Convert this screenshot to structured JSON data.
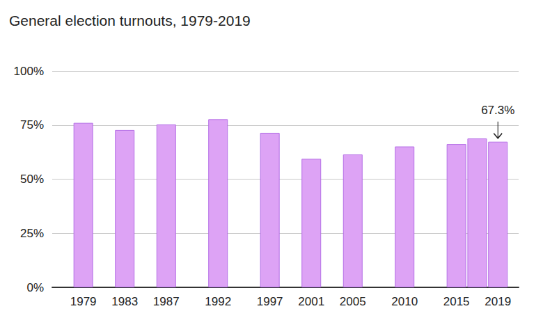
{
  "chart_data": {
    "type": "bar",
    "title": "General election turnouts, 1979-2019",
    "x": [
      1979,
      1983,
      1987,
      1992,
      1997,
      2001,
      2005,
      2010,
      2015,
      2017,
      2019
    ],
    "values": [
      76.0,
      72.7,
      75.3,
      77.7,
      71.4,
      59.4,
      61.4,
      65.1,
      66.2,
      68.8,
      67.3
    ],
    "color": "#dda3f5",
    "xlim": [
      1976,
      2021
    ],
    "xticks": [
      1979,
      1983,
      1987,
      1992,
      1997,
      2001,
      2005,
      2010,
      2015,
      2019
    ],
    "ylim": [
      0,
      100
    ],
    "yticks": [
      {
        "value": 0,
        "label": "0%"
      },
      {
        "value": 25,
        "label": "25%"
      },
      {
        "value": 50,
        "label": "50%"
      },
      {
        "value": 75,
        "label": "75%"
      },
      {
        "value": 100,
        "label": "100%"
      }
    ],
    "annotations": [
      {
        "x": 2019,
        "y": 67.3,
        "text": "67.3%"
      }
    ],
    "grid": true,
    "data_labels": false
  }
}
